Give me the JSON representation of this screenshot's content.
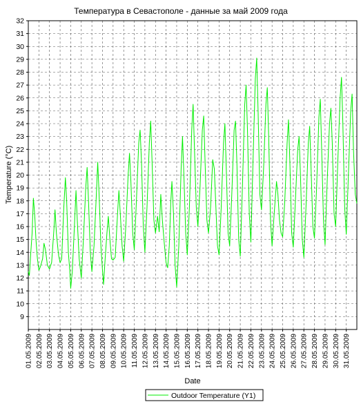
{
  "chart_data": {
    "type": "line",
    "title": "Температура в Севастополе - данные за май 2009 года",
    "xlabel": "Date",
    "ylabel": "Temperature (°C)",
    "ylim": [
      8,
      32
    ],
    "y_ticks": [
      9,
      10,
      11,
      12,
      13,
      14,
      15,
      16,
      17,
      18,
      19,
      20,
      21,
      22,
      23,
      24,
      25,
      26,
      27,
      28,
      29,
      30,
      31,
      32
    ],
    "x_tick_labels": [
      "01.05.2009",
      "02.05.2009",
      "03.05.2009",
      "04.05.2009",
      "05.05.2009",
      "06.05.2009",
      "07.05.2009",
      "08.05.2009",
      "09.05.2009",
      "10.05.2009",
      "11.05.2009",
      "12.05.2009",
      "13.05.2009",
      "14.05.2009",
      "15.05.2009",
      "16.05.2009",
      "17.05.2009",
      "18.05.2009",
      "19.05.2009",
      "20.05.2009",
      "21.05.2009",
      "22.05.2009",
      "23.05.2009",
      "24.05.2009",
      "25.05.2009",
      "26.05.2009",
      "27.05.2009",
      "28.05.2009",
      "29.05.2009",
      "30.05.2009",
      "31.05.2009"
    ],
    "grid": true,
    "legend_position": "bottom-center",
    "series": [
      {
        "name": "Outdoor Temperature (Y1)",
        "color": "#00ee00",
        "x_unit": "day of May 2009 (fractional)",
        "points": [
          [
            1.0,
            12.5
          ],
          [
            1.1,
            12.2
          ],
          [
            1.22,
            13.8
          ],
          [
            1.36,
            15.5
          ],
          [
            1.48,
            18.2
          ],
          [
            1.6,
            17.0
          ],
          [
            1.72,
            15.0
          ],
          [
            1.86,
            13.5
          ],
          [
            2.0,
            12.6
          ],
          [
            2.15,
            12.9
          ],
          [
            2.35,
            13.5
          ],
          [
            2.48,
            14.7
          ],
          [
            2.62,
            14.2
          ],
          [
            2.8,
            13.0
          ],
          [
            3.0,
            12.7
          ],
          [
            3.2,
            13.2
          ],
          [
            3.42,
            15.8
          ],
          [
            3.52,
            17.3
          ],
          [
            3.65,
            15.5
          ],
          [
            3.85,
            13.8
          ],
          [
            4.0,
            13.2
          ],
          [
            4.15,
            13.5
          ],
          [
            4.35,
            17.5
          ],
          [
            4.5,
            19.8
          ],
          [
            4.62,
            18.0
          ],
          [
            4.78,
            14.0
          ],
          [
            4.92,
            12.5
          ],
          [
            5.0,
            11.2
          ],
          [
            5.15,
            12.5
          ],
          [
            5.35,
            16.0
          ],
          [
            5.5,
            18.8
          ],
          [
            5.62,
            16.5
          ],
          [
            5.8,
            13.5
          ],
          [
            6.0,
            12.0
          ],
          [
            6.2,
            15.0
          ],
          [
            6.42,
            19.0
          ],
          [
            6.55,
            20.6
          ],
          [
            6.68,
            18.0
          ],
          [
            6.85,
            14.0
          ],
          [
            7.0,
            12.5
          ],
          [
            7.2,
            14.5
          ],
          [
            7.42,
            18.5
          ],
          [
            7.55,
            21.0
          ],
          [
            7.68,
            18.5
          ],
          [
            7.85,
            14.5
          ],
          [
            8.0,
            12.6
          ],
          [
            8.1,
            11.5
          ],
          [
            8.25,
            13.5
          ],
          [
            8.42,
            15.5
          ],
          [
            8.55,
            16.8
          ],
          [
            8.7,
            15.0
          ],
          [
            8.85,
            13.5
          ],
          [
            9.0,
            13.4
          ],
          [
            9.2,
            13.6
          ],
          [
            9.42,
            17.0
          ],
          [
            9.55,
            18.8
          ],
          [
            9.68,
            17.0
          ],
          [
            9.85,
            14.5
          ],
          [
            10.0,
            13.3
          ],
          [
            10.2,
            16.0
          ],
          [
            10.42,
            20.0
          ],
          [
            10.55,
            21.7
          ],
          [
            10.68,
            19.5
          ],
          [
            10.85,
            15.5
          ],
          [
            11.0,
            14.2
          ],
          [
            11.2,
            18.0
          ],
          [
            11.42,
            22.5
          ],
          [
            11.55,
            23.5
          ],
          [
            11.68,
            21.0
          ],
          [
            11.85,
            16.0
          ],
          [
            12.0,
            14.0
          ],
          [
            12.2,
            17.5
          ],
          [
            12.42,
            22.5
          ],
          [
            12.55,
            24.2
          ],
          [
            12.68,
            21.0
          ],
          [
            12.85,
            16.5
          ],
          [
            13.0,
            15.5
          ],
          [
            13.2,
            16.8
          ],
          [
            13.35,
            15.6
          ],
          [
            13.5,
            18.5
          ],
          [
            13.65,
            16.5
          ],
          [
            13.85,
            14.5
          ],
          [
            14.0,
            13.2
          ],
          [
            14.15,
            12.8
          ],
          [
            14.3,
            14.5
          ],
          [
            14.45,
            18.0
          ],
          [
            14.55,
            19.5
          ],
          [
            14.7,
            17.0
          ],
          [
            14.85,
            13.0
          ],
          [
            15.0,
            11.3
          ],
          [
            15.2,
            14.5
          ],
          [
            15.42,
            20.5
          ],
          [
            15.55,
            23.0
          ],
          [
            15.68,
            20.0
          ],
          [
            15.85,
            15.5
          ],
          [
            16.0,
            13.8
          ],
          [
            16.2,
            17.5
          ],
          [
            16.42,
            23.5
          ],
          [
            16.55,
            25.5
          ],
          [
            16.68,
            22.0
          ],
          [
            16.85,
            17.5
          ],
          [
            17.0,
            16.0
          ],
          [
            17.2,
            19.0
          ],
          [
            17.42,
            23.5
          ],
          [
            17.55,
            24.6
          ],
          [
            17.68,
            21.0
          ],
          [
            17.85,
            16.5
          ],
          [
            18.0,
            15.5
          ],
          [
            18.2,
            17.5
          ],
          [
            18.4,
            21.2
          ],
          [
            18.55,
            20.5
          ],
          [
            18.7,
            17.5
          ],
          [
            18.85,
            14.5
          ],
          [
            19.0,
            13.8
          ],
          [
            19.2,
            17.5
          ],
          [
            19.42,
            22.5
          ],
          [
            19.55,
            24.0
          ],
          [
            19.68,
            20.5
          ],
          [
            19.85,
            15.5
          ],
          [
            20.0,
            14.5
          ],
          [
            20.2,
            18.5
          ],
          [
            20.42,
            23.5
          ],
          [
            20.55,
            24.2
          ],
          [
            20.68,
            21.0
          ],
          [
            20.85,
            15.0
          ],
          [
            21.0,
            13.7
          ],
          [
            21.2,
            19.0
          ],
          [
            21.42,
            25.5
          ],
          [
            21.55,
            27.0
          ],
          [
            21.68,
            23.5
          ],
          [
            21.85,
            17.0
          ],
          [
            22.0,
            14.8
          ],
          [
            22.2,
            21.0
          ],
          [
            22.42,
            27.5
          ],
          [
            22.55,
            29.1
          ],
          [
            22.68,
            25.0
          ],
          [
            22.85,
            18.5
          ],
          [
            23.0,
            17.3
          ],
          [
            23.2,
            20.5
          ],
          [
            23.42,
            25.5
          ],
          [
            23.55,
            26.8
          ],
          [
            23.68,
            23.0
          ],
          [
            23.85,
            16.5
          ],
          [
            24.0,
            14.5
          ],
          [
            24.2,
            17.0
          ],
          [
            24.42,
            19.5
          ],
          [
            24.55,
            18.5
          ],
          [
            24.7,
            16.5
          ],
          [
            24.85,
            15.5
          ],
          [
            25.0,
            15.2
          ],
          [
            25.2,
            18.0
          ],
          [
            25.42,
            22.5
          ],
          [
            25.55,
            24.3
          ],
          [
            25.68,
            21.0
          ],
          [
            25.85,
            15.5
          ],
          [
            26.0,
            14.4
          ],
          [
            26.2,
            18.0
          ],
          [
            26.42,
            22.0
          ],
          [
            26.55,
            23.0
          ],
          [
            26.68,
            20.0
          ],
          [
            26.85,
            15.0
          ],
          [
            27.0,
            13.6
          ],
          [
            27.2,
            17.5
          ],
          [
            27.42,
            22.5
          ],
          [
            27.55,
            23.8
          ],
          [
            27.68,
            20.5
          ],
          [
            27.85,
            16.0
          ],
          [
            28.0,
            15.1
          ],
          [
            28.2,
            19.0
          ],
          [
            28.42,
            24.5
          ],
          [
            28.55,
            25.9
          ],
          [
            28.68,
            22.0
          ],
          [
            28.85,
            16.5
          ],
          [
            29.0,
            14.6
          ],
          [
            29.2,
            19.5
          ],
          [
            29.42,
            24.0
          ],
          [
            29.55,
            25.2
          ],
          [
            29.68,
            22.5
          ],
          [
            29.85,
            17.0
          ],
          [
            30.0,
            16.0
          ],
          [
            30.2,
            21.0
          ],
          [
            30.42,
            26.0
          ],
          [
            30.55,
            27.6
          ],
          [
            30.68,
            24.0
          ],
          [
            30.85,
            17.5
          ],
          [
            31.0,
            15.4
          ],
          [
            31.2,
            20.0
          ],
          [
            31.42,
            25.0
          ],
          [
            31.55,
            26.3
          ],
          [
            31.68,
            22.0
          ],
          [
            31.85,
            18.5
          ],
          [
            32.0,
            17.8
          ]
        ]
      }
    ]
  }
}
